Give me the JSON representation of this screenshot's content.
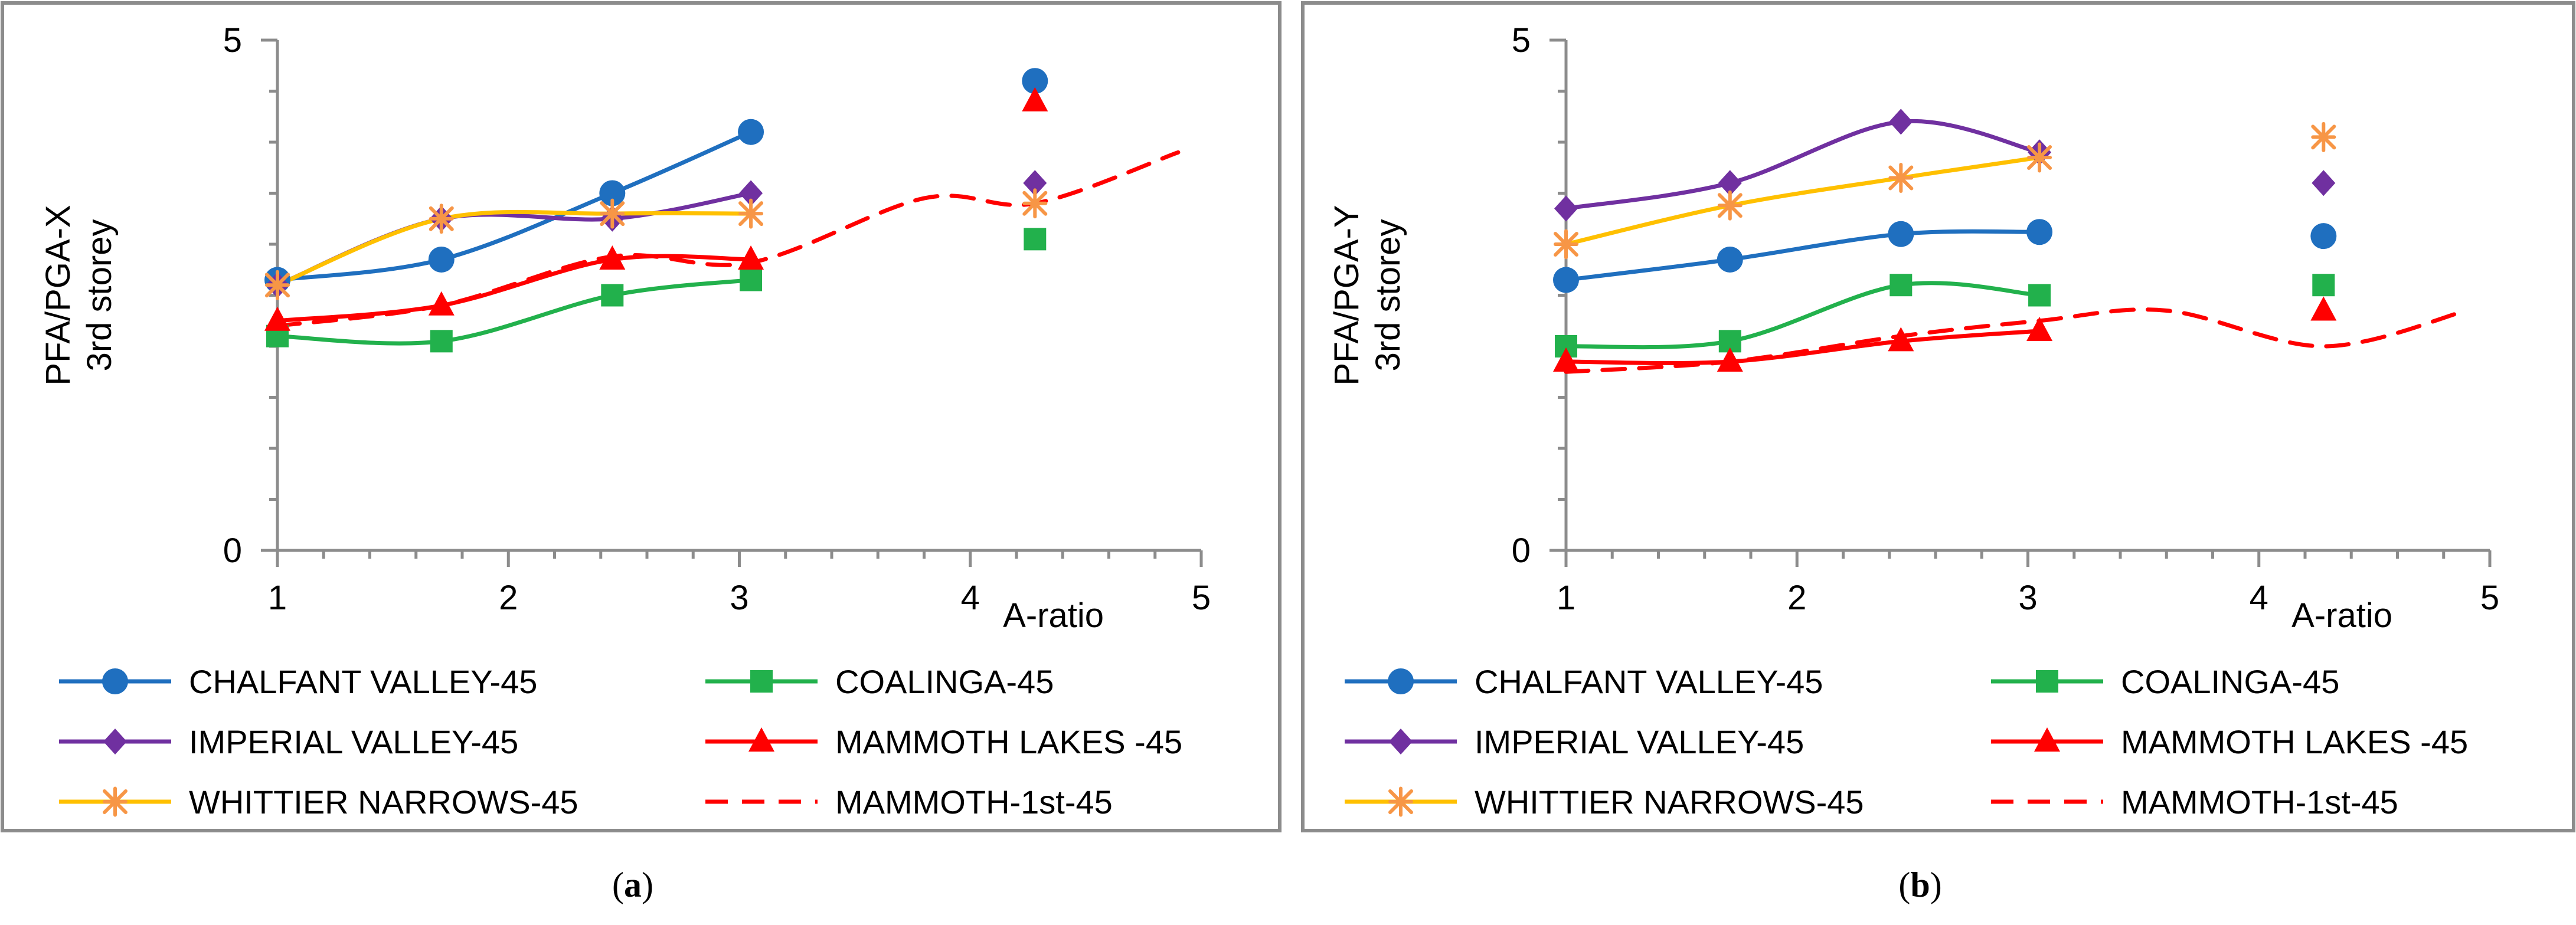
{
  "figure": {
    "panels": [
      {
        "id": "a",
        "caption_open": "(",
        "caption_label": "a",
        "caption_close": ")"
      },
      {
        "id": "b",
        "caption_open": "(",
        "caption_label": "b",
        "caption_close": ")"
      }
    ]
  },
  "chart_data": [
    {
      "type": "line",
      "panel": "a",
      "ylabel_line1": "PFA/PGA-X",
      "ylabel_line2": "3rd storey",
      "xlabel": "A-ratio",
      "xlim": [
        1,
        5
      ],
      "ylim": [
        0,
        5
      ],
      "xticks": [
        "1",
        "2",
        "3",
        "4",
        "5"
      ],
      "yticks": [
        "0",
        "5"
      ],
      "series": [
        {
          "name": "CHALFANT VALLEY-45",
          "color": "#1f6fbf",
          "marker": "circle",
          "dash": "solid",
          "x": [
            1,
            1.71,
            2.45,
            3.05
          ],
          "y": [
            2.65,
            2.85,
            3.5,
            4.1
          ],
          "extra": [
            4.28,
            4.6
          ]
        },
        {
          "name": "COALINGA-45",
          "color": "#22b14c",
          "marker": "square",
          "dash": "solid",
          "x": [
            1,
            1.71,
            2.45,
            3.05
          ],
          "y": [
            2.1,
            2.05,
            2.5,
            2.65
          ],
          "extra": [
            4.28,
            3.05
          ]
        },
        {
          "name": "IMPERIAL VALLEY-45",
          "color": "#7030a0",
          "marker": "diamond",
          "dash": "solid",
          "x": [
            1,
            1.71,
            2.45,
            3.05
          ],
          "y": [
            2.6,
            3.25,
            3.25,
            3.5
          ],
          "extra": [
            4.28,
            3.6
          ]
        },
        {
          "name": "MAMMOTH LAKES -45",
          "color": "#ff0000",
          "marker": "triangle",
          "dash": "solid",
          "x": [
            1,
            1.71,
            2.45,
            3.05
          ],
          "y": [
            2.25,
            2.4,
            2.85,
            2.85
          ],
          "extra": [
            4.28,
            4.4
          ]
        },
        {
          "name": "WHITTIER NARROWS-45",
          "color": "#ffc000",
          "marker": "star",
          "markerColor": "#f79646",
          "dash": "solid",
          "x": [
            1,
            1.71,
            2.45,
            3.05
          ],
          "y": [
            2.6,
            3.25,
            3.3,
            3.3
          ],
          "extra": [
            4.28,
            3.4
          ]
        },
        {
          "name": "MAMMOTH-1st-45",
          "color": "#ff0000",
          "marker": "none",
          "dash": "dashed",
          "x": [
            1,
            1.71,
            2.45,
            3.05,
            3.8,
            4.28,
            4.9
          ],
          "y": [
            2.2,
            2.4,
            2.88,
            2.82,
            3.45,
            3.4,
            3.9
          ]
        }
      ]
    },
    {
      "type": "line",
      "panel": "b",
      "ylabel_line1": "PFA/PGA-Y",
      "ylabel_line2": "3rd storey",
      "xlabel": "A-ratio",
      "xlim": [
        1,
        5
      ],
      "ylim": [
        0,
        5
      ],
      "xticks": [
        "1",
        "2",
        "3",
        "4",
        "5"
      ],
      "yticks": [
        "0",
        "5"
      ],
      "series": [
        {
          "name": "CHALFANT VALLEY-45",
          "color": "#1f6fbf",
          "marker": "circle",
          "dash": "solid",
          "x": [
            1,
            1.71,
            2.45,
            3.05
          ],
          "y": [
            2.65,
            2.85,
            3.1,
            3.12
          ],
          "extra": [
            4.28,
            3.08
          ]
        },
        {
          "name": "COALINGA-45",
          "color": "#22b14c",
          "marker": "square",
          "dash": "solid",
          "x": [
            1,
            1.71,
            2.45,
            3.05
          ],
          "y": [
            2.0,
            2.05,
            2.6,
            2.5
          ],
          "extra": [
            4.28,
            2.6
          ]
        },
        {
          "name": "IMPERIAL VALLEY-45",
          "color": "#7030a0",
          "marker": "diamond",
          "dash": "solid",
          "x": [
            1,
            1.71,
            2.45,
            3.05
          ],
          "y": [
            3.35,
            3.6,
            4.2,
            3.9
          ],
          "extra": [
            4.28,
            3.6
          ]
        },
        {
          "name": "MAMMOTH LAKES -45",
          "color": "#ff0000",
          "marker": "triangle",
          "dash": "solid",
          "x": [
            1,
            1.71,
            2.45,
            3.05
          ],
          "y": [
            1.85,
            1.85,
            2.05,
            2.15
          ],
          "extra": [
            4.28,
            2.35
          ]
        },
        {
          "name": "WHITTIER NARROWS-45",
          "color": "#ffc000",
          "marker": "star",
          "markerColor": "#f79646",
          "dash": "solid",
          "x": [
            1,
            1.71,
            2.45,
            3.05
          ],
          "y": [
            3.0,
            3.38,
            3.65,
            3.85
          ],
          "extra": [
            4.28,
            4.05
          ]
        },
        {
          "name": "MAMMOTH-1st-45",
          "color": "#ff0000",
          "marker": "none",
          "dash": "dashed",
          "x": [
            1,
            1.71,
            2.45,
            3.05,
            3.6,
            4.28,
            4.9
          ],
          "y": [
            1.75,
            1.85,
            2.1,
            2.25,
            2.35,
            2.0,
            2.35
          ]
        }
      ]
    }
  ]
}
